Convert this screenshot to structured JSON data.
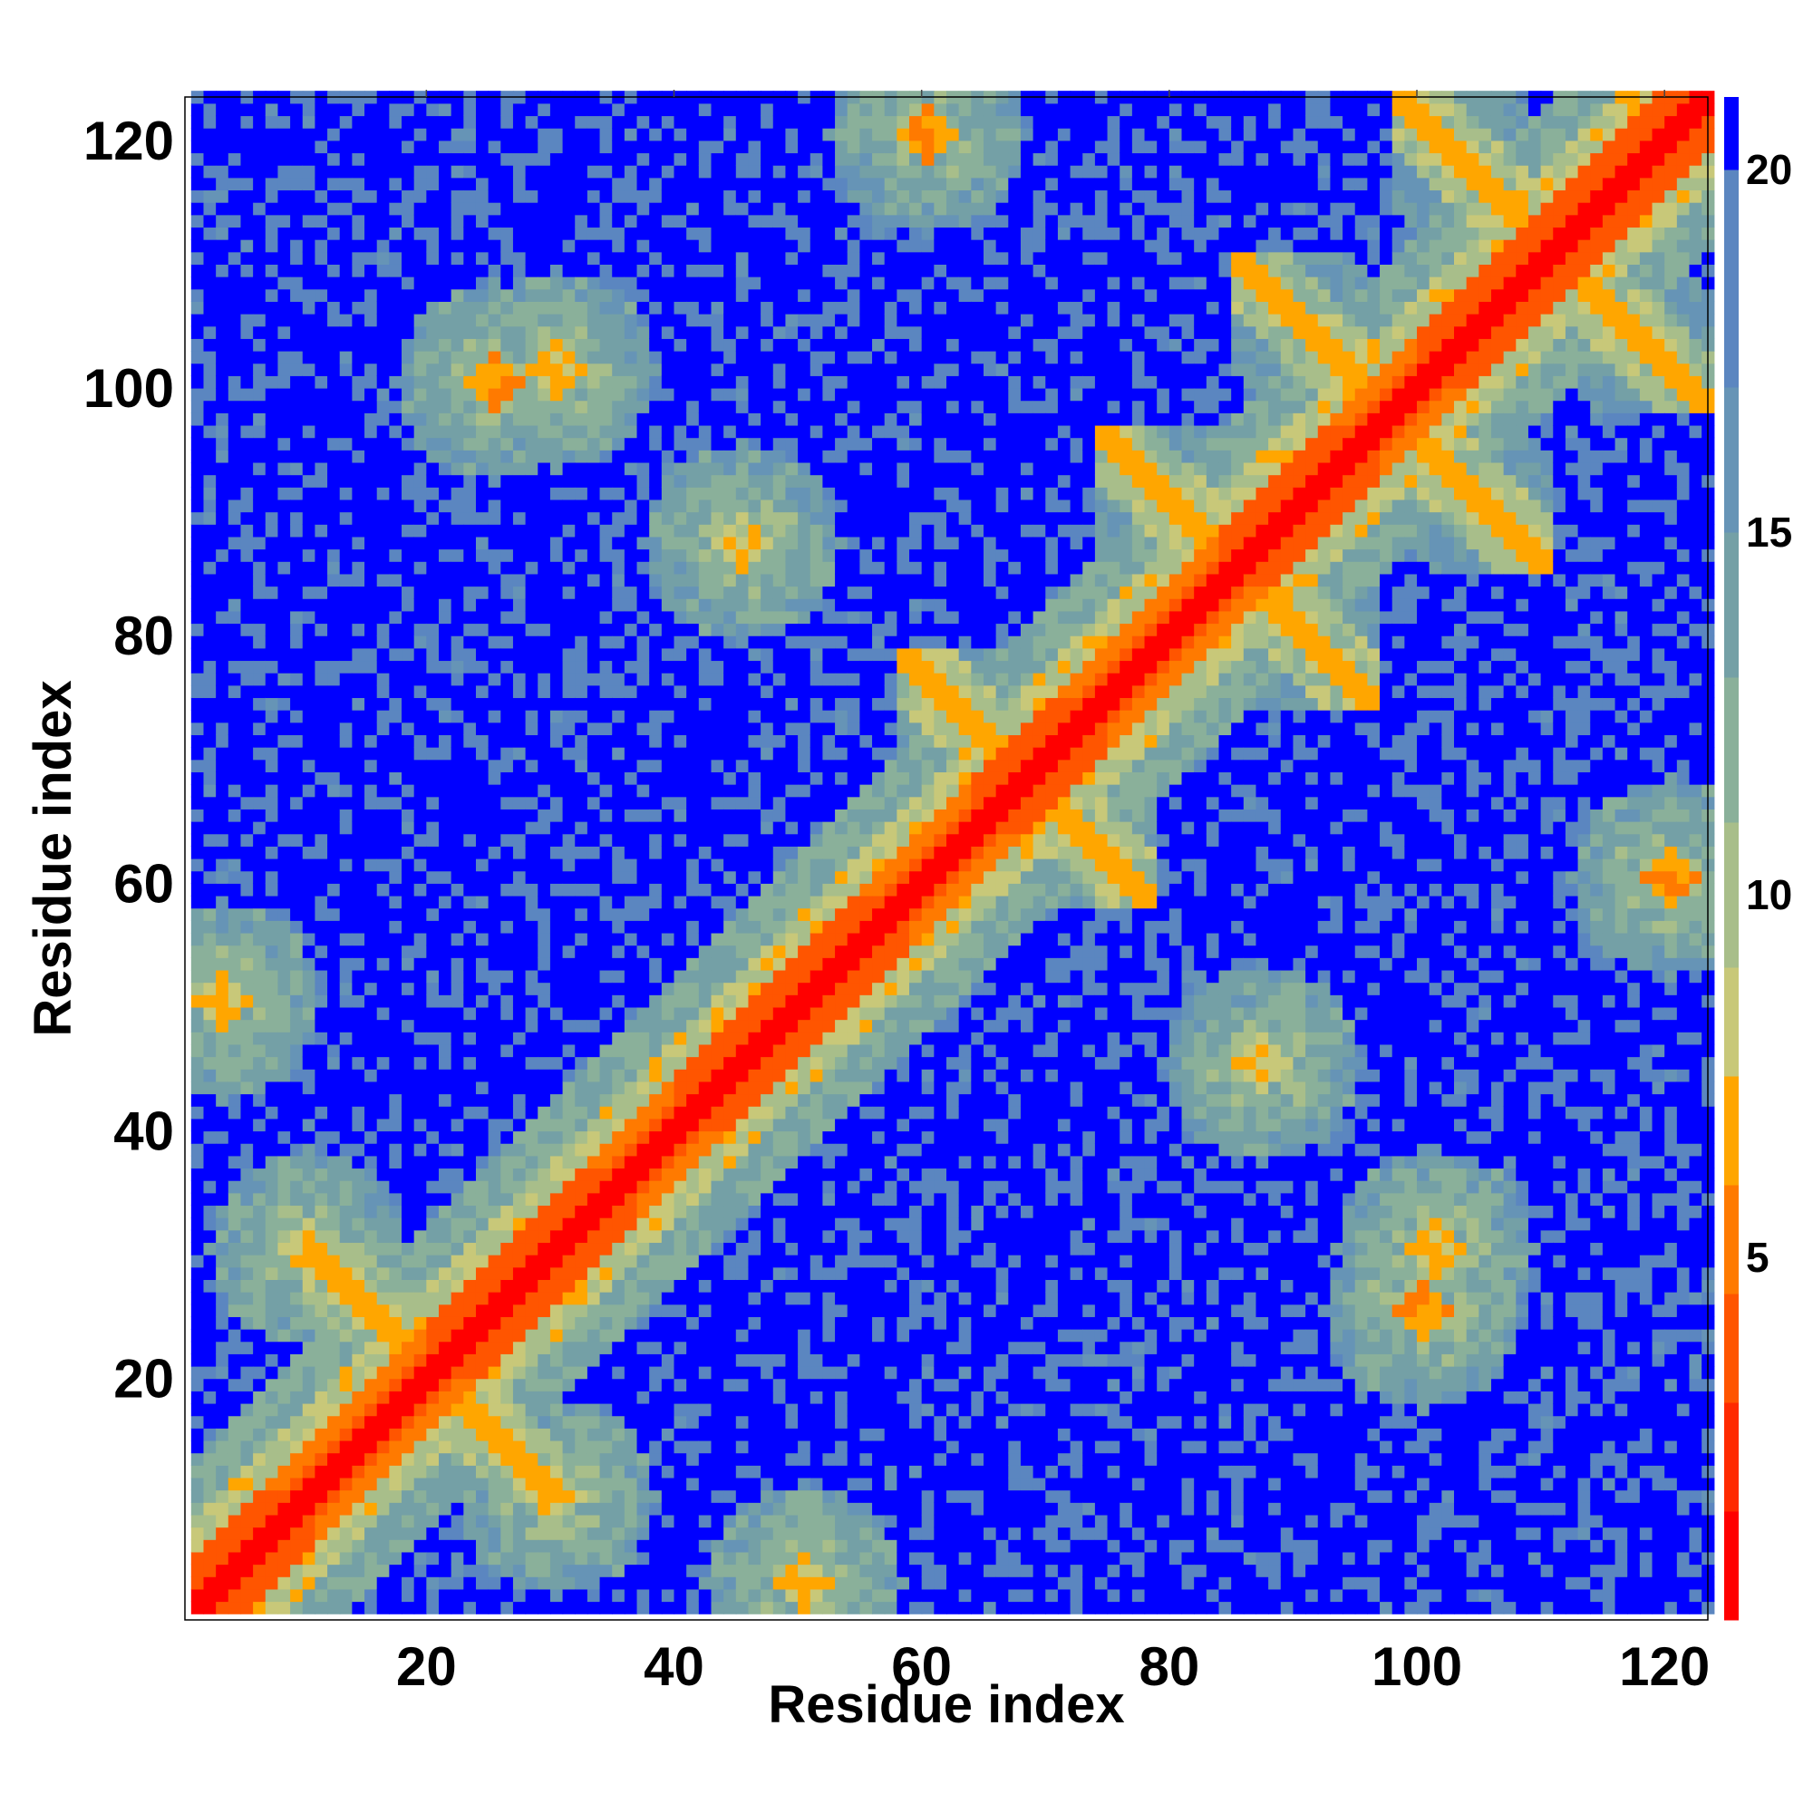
{
  "chart_data": {
    "type": "heatmap",
    "title": "",
    "xlabel": "Residue index",
    "ylabel": "Residue index",
    "n_residues": 123,
    "xlim": [
      1,
      123
    ],
    "ylim": [
      1,
      123
    ],
    "x_ticks": [
      20,
      40,
      60,
      80,
      100,
      120
    ],
    "y_ticks": [
      20,
      40,
      60,
      80,
      100,
      120
    ],
    "colorbar": {
      "ticks": [
        5,
        10,
        15,
        20
      ],
      "range": [
        0,
        21
      ],
      "scale": [
        {
          "max": 1.5,
          "color": "#ff0000"
        },
        {
          "max": 3.0,
          "color": "#ff2a00"
        },
        {
          "max": 4.5,
          "color": "#ff5500"
        },
        {
          "max": 6.0,
          "color": "#ff7a00"
        },
        {
          "max": 7.5,
          "color": "#ffa600"
        },
        {
          "max": 9.0,
          "color": "#c8c879"
        },
        {
          "max": 11.0,
          "color": "#a8be8a"
        },
        {
          "max": 13.0,
          "color": "#8ab09a"
        },
        {
          "max": 15.0,
          "color": "#74a0a6"
        },
        {
          "max": 17.0,
          "color": "#6694b6"
        },
        {
          "max": 20.0,
          "color": "#5b86c0"
        },
        {
          "max": 21.0,
          "color": "#0000ff"
        }
      ]
    },
    "secondary_structure_contacts": {
      "helix_segments": [
        [
          1,
          10
        ],
        [
          20,
          36
        ],
        [
          40,
          58
        ],
        [
          64,
          74
        ],
        [
          84,
          96
        ],
        [
          100,
          123
        ]
      ],
      "antiparallel_pairs": [
        {
          "i": [
            58,
            68
          ],
          "j": [
            68,
            78
          ]
        },
        {
          "i": [
            74,
            86
          ],
          "j": [
            86,
            96
          ]
        },
        {
          "i": [
            85,
            96
          ],
          "j": [
            96,
            110
          ]
        },
        {
          "i": [
            98,
            110
          ],
          "j": [
            110,
            123
          ]
        },
        {
          "i": [
            10,
            20
          ],
          "j": [
            20,
            30
          ]
        }
      ],
      "tertiary_patches": [
        {
          "i": 60,
          "j": 120,
          "d": 5
        },
        {
          "i": 25,
          "j": 100,
          "d": 5
        },
        {
          "i": 30,
          "j": 101,
          "d": 6
        },
        {
          "i": 50,
          "j": 3,
          "d": 6
        },
        {
          "i": 45,
          "j": 87,
          "d": 7
        },
        {
          "i": 30,
          "j": 10,
          "d": 7
        }
      ]
    }
  }
}
